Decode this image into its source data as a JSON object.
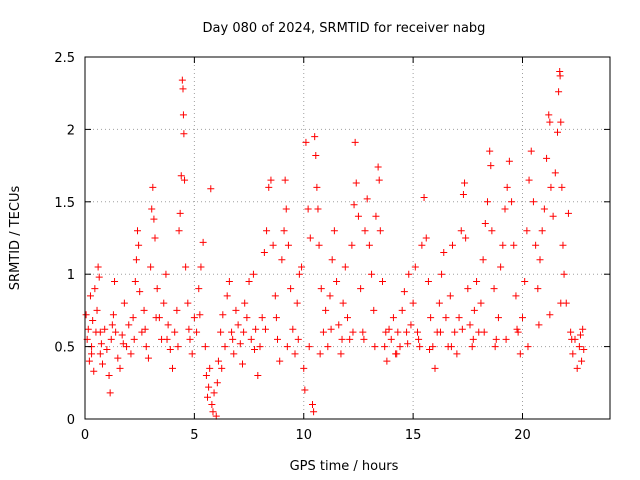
{
  "chart_data": {
    "type": "scatter",
    "title": "Day 080 of 2024, SRMTID for receiver nabg",
    "xlabel": "GPS time / hours",
    "ylabel": "SRMTID / TECUs",
    "xlim": [
      0,
      24
    ],
    "ylim": [
      0,
      2.5
    ],
    "xticks": [
      0,
      5,
      10,
      15,
      20
    ],
    "xtick_labels": [
      "0",
      "5",
      "10",
      "15",
      "20"
    ],
    "yticks": [
      0,
      0.5,
      1,
      1.5,
      2,
      2.5
    ],
    "ytick_labels": [
      "0",
      "0.5",
      "1",
      "1.5",
      "2",
      "2.5"
    ],
    "grid": true,
    "marker": "plus",
    "color": "#ff0000",
    "series": [
      {
        "points": [
          [
            0.05,
            0.72
          ],
          [
            0.1,
            0.55
          ],
          [
            0.15,
            0.62
          ],
          [
            0.2,
            0.4
          ],
          [
            0.25,
            0.85
          ],
          [
            0.3,
            0.5
          ],
          [
            0.35,
            0.68
          ],
          [
            0.4,
            0.33
          ],
          [
            0.45,
            0.9
          ],
          [
            0.5,
            0.6
          ],
          [
            0.55,
            0.75
          ],
          [
            0.6,
            1.05
          ],
          [
            0.65,
            0.98
          ],
          [
            0.7,
            0.45
          ],
          [
            0.75,
            0.52
          ],
          [
            0.8,
            0.38
          ],
          [
            0.9,
            0.62
          ],
          [
            1.0,
            0.48
          ],
          [
            1.1,
            0.3
          ],
          [
            1.15,
            0.18
          ],
          [
            1.2,
            0.55
          ],
          [
            1.3,
            0.72
          ],
          [
            1.35,
            0.95
          ],
          [
            1.4,
            0.6
          ],
          [
            1.5,
            0.42
          ],
          [
            1.6,
            0.35
          ],
          [
            1.7,
            0.58
          ],
          [
            1.8,
            0.8
          ],
          [
            1.9,
            0.5
          ],
          [
            2.0,
            0.65
          ],
          [
            2.1,
            0.45
          ],
          [
            2.2,
            0.7
          ],
          [
            2.3,
            0.95
          ],
          [
            2.35,
            1.1
          ],
          [
            2.4,
            1.3
          ],
          [
            2.45,
            1.2
          ],
          [
            2.5,
            0.88
          ],
          [
            2.6,
            0.6
          ],
          [
            2.7,
            0.75
          ],
          [
            2.8,
            0.5
          ],
          [
            2.9,
            0.42
          ],
          [
            3.0,
            1.05
          ],
          [
            3.05,
            1.45
          ],
          [
            3.1,
            1.6
          ],
          [
            3.15,
            1.38
          ],
          [
            3.2,
            1.25
          ],
          [
            3.3,
            0.9
          ],
          [
            3.4,
            0.7
          ],
          [
            3.5,
            0.55
          ],
          [
            3.6,
            0.8
          ],
          [
            3.7,
            1.0
          ],
          [
            3.8,
            0.65
          ],
          [
            3.9,
            0.48
          ],
          [
            4.0,
            0.35
          ],
          [
            4.1,
            0.6
          ],
          [
            4.2,
            0.75
          ],
          [
            4.3,
            1.3
          ],
          [
            4.35,
            1.42
          ],
          [
            4.4,
            1.68
          ],
          [
            4.45,
            2.34
          ],
          [
            4.48,
            2.28
          ],
          [
            4.5,
            2.1
          ],
          [
            4.52,
            1.97
          ],
          [
            4.55,
            1.65
          ],
          [
            4.6,
            1.05
          ],
          [
            4.7,
            0.8
          ],
          [
            4.8,
            0.55
          ],
          [
            4.9,
            0.45
          ],
          [
            5.0,
            0.7
          ],
          [
            5.1,
            0.6
          ],
          [
            5.2,
            0.9
          ],
          [
            5.3,
            1.05
          ],
          [
            5.4,
            1.22
          ],
          [
            5.5,
            0.5
          ],
          [
            5.55,
            0.3
          ],
          [
            5.6,
            0.15
          ],
          [
            5.65,
            0.22
          ],
          [
            5.7,
            0.35
          ],
          [
            5.75,
            1.59
          ],
          [
            5.8,
            0.1
          ],
          [
            5.85,
            0.05
          ],
          [
            5.9,
            0.18
          ],
          [
            6.0,
            0.02
          ],
          [
            6.05,
            0.25
          ],
          [
            6.1,
            0.4
          ],
          [
            6.2,
            0.6
          ],
          [
            6.3,
            0.72
          ],
          [
            6.4,
            0.5
          ],
          [
            6.5,
            0.85
          ],
          [
            6.6,
            0.95
          ],
          [
            6.7,
            0.6
          ],
          [
            6.8,
            0.45
          ],
          [
            6.9,
            0.75
          ],
          [
            7.0,
            0.65
          ],
          [
            7.1,
            0.52
          ],
          [
            7.2,
            0.38
          ],
          [
            7.3,
            0.8
          ],
          [
            7.4,
            0.7
          ],
          [
            7.5,
            0.95
          ],
          [
            7.6,
            0.55
          ],
          [
            7.7,
            1.0
          ],
          [
            7.8,
            0.62
          ],
          [
            7.9,
            0.3
          ],
          [
            8.0,
            0.5
          ],
          [
            8.1,
            0.7
          ],
          [
            8.2,
            1.15
          ],
          [
            8.3,
            1.3
          ],
          [
            8.4,
            1.6
          ],
          [
            8.5,
            1.65
          ],
          [
            8.6,
            1.2
          ],
          [
            8.7,
            0.85
          ],
          [
            8.8,
            0.55
          ],
          [
            8.9,
            0.4
          ],
          [
            9.0,
            1.1
          ],
          [
            9.1,
            1.3
          ],
          [
            9.15,
            1.65
          ],
          [
            9.2,
            1.45
          ],
          [
            9.3,
            1.2
          ],
          [
            9.4,
            0.9
          ],
          [
            9.5,
            0.62
          ],
          [
            9.6,
            0.45
          ],
          [
            9.7,
            0.8
          ],
          [
            9.8,
            1.0
          ],
          [
            9.9,
            1.05
          ],
          [
            10.0,
            0.35
          ],
          [
            10.05,
            0.2
          ],
          [
            10.1,
            1.91
          ],
          [
            10.2,
            1.45
          ],
          [
            10.3,
            1.25
          ],
          [
            10.4,
            0.1
          ],
          [
            10.45,
            0.05
          ],
          [
            10.5,
            1.95
          ],
          [
            10.55,
            1.82
          ],
          [
            10.6,
            1.6
          ],
          [
            10.65,
            1.45
          ],
          [
            10.7,
            1.2
          ],
          [
            10.8,
            0.9
          ],
          [
            10.9,
            0.6
          ],
          [
            11.0,
            0.75
          ],
          [
            11.1,
            0.5
          ],
          [
            11.2,
            0.85
          ],
          [
            11.3,
            1.1
          ],
          [
            11.4,
            1.3
          ],
          [
            11.5,
            0.95
          ],
          [
            11.6,
            0.65
          ],
          [
            11.7,
            0.45
          ],
          [
            11.8,
            0.8
          ],
          [
            11.9,
            1.05
          ],
          [
            12.0,
            0.7
          ],
          [
            12.1,
            0.55
          ],
          [
            12.2,
            1.2
          ],
          [
            12.3,
            1.48
          ],
          [
            12.35,
            1.91
          ],
          [
            12.4,
            1.63
          ],
          [
            12.5,
            1.4
          ],
          [
            12.6,
            0.9
          ],
          [
            12.7,
            0.6
          ],
          [
            12.8,
            1.3
          ],
          [
            12.9,
            1.52
          ],
          [
            13.0,
            1.2
          ],
          [
            13.1,
            1.0
          ],
          [
            13.2,
            0.75
          ],
          [
            13.3,
            1.4
          ],
          [
            13.4,
            1.74
          ],
          [
            13.45,
            1.65
          ],
          [
            13.5,
            1.3
          ],
          [
            13.6,
            0.95
          ],
          [
            13.7,
            0.5
          ],
          [
            13.8,
            0.4
          ],
          [
            13.9,
            0.62
          ],
          [
            14.0,
            0.55
          ],
          [
            14.1,
            0.7
          ],
          [
            14.2,
            0.45
          ],
          [
            14.3,
            0.6
          ],
          [
            14.4,
            0.5
          ],
          [
            14.5,
            0.75
          ],
          [
            14.6,
            0.88
          ],
          [
            14.7,
            0.6
          ],
          [
            14.8,
            1.0
          ],
          [
            14.9,
            0.65
          ],
          [
            15.0,
            0.8
          ],
          [
            15.1,
            1.05
          ],
          [
            15.2,
            0.6
          ],
          [
            15.3,
            0.5
          ],
          [
            15.4,
            1.2
          ],
          [
            15.5,
            1.53
          ],
          [
            15.6,
            1.25
          ],
          [
            15.7,
            0.95
          ],
          [
            15.8,
            0.7
          ],
          [
            15.9,
            0.5
          ],
          [
            16.0,
            0.35
          ],
          [
            16.1,
            0.6
          ],
          [
            16.2,
            0.8
          ],
          [
            16.3,
            1.0
          ],
          [
            16.4,
            1.15
          ],
          [
            16.5,
            0.7
          ],
          [
            16.6,
            0.5
          ],
          [
            16.7,
            0.85
          ],
          [
            16.8,
            1.2
          ],
          [
            16.9,
            0.6
          ],
          [
            17.0,
            0.45
          ],
          [
            17.1,
            0.7
          ],
          [
            17.2,
            1.3
          ],
          [
            17.3,
            1.55
          ],
          [
            17.35,
            1.63
          ],
          [
            17.4,
            1.25
          ],
          [
            17.5,
            0.9
          ],
          [
            17.6,
            0.65
          ],
          [
            17.7,
            0.5
          ],
          [
            17.8,
            0.75
          ],
          [
            17.9,
            0.95
          ],
          [
            18.0,
            0.6
          ],
          [
            18.1,
            0.8
          ],
          [
            18.2,
            1.1
          ],
          [
            18.3,
            1.35
          ],
          [
            18.4,
            1.5
          ],
          [
            18.5,
            1.85
          ],
          [
            18.55,
            1.75
          ],
          [
            18.6,
            1.3
          ],
          [
            18.7,
            0.9
          ],
          [
            18.8,
            0.55
          ],
          [
            18.9,
            0.7
          ],
          [
            19.0,
            1.05
          ],
          [
            19.1,
            1.2
          ],
          [
            19.2,
            1.45
          ],
          [
            19.3,
            1.6
          ],
          [
            19.4,
            1.78
          ],
          [
            19.5,
            1.5
          ],
          [
            19.6,
            1.2
          ],
          [
            19.7,
            0.85
          ],
          [
            19.8,
            0.6
          ],
          [
            19.9,
            0.45
          ],
          [
            20.0,
            0.7
          ],
          [
            20.1,
            0.95
          ],
          [
            20.2,
            1.3
          ],
          [
            20.3,
            1.65
          ],
          [
            20.4,
            1.85
          ],
          [
            20.5,
            1.5
          ],
          [
            20.6,
            1.2
          ],
          [
            20.7,
            0.9
          ],
          [
            20.8,
            1.1
          ],
          [
            20.9,
            1.3
          ],
          [
            21.0,
            1.45
          ],
          [
            21.1,
            1.8
          ],
          [
            21.2,
            2.1
          ],
          [
            21.25,
            2.05
          ],
          [
            21.3,
            1.6
          ],
          [
            21.4,
            1.4
          ],
          [
            21.5,
            1.7
          ],
          [
            21.6,
            1.98
          ],
          [
            21.65,
            2.26
          ],
          [
            21.7,
            2.4
          ],
          [
            21.72,
            2.37
          ],
          [
            21.75,
            2.05
          ],
          [
            21.8,
            1.6
          ],
          [
            21.85,
            1.2
          ],
          [
            21.9,
            1.0
          ],
          [
            22.0,
            0.8
          ],
          [
            22.1,
            1.42
          ],
          [
            22.2,
            0.6
          ],
          [
            22.3,
            0.45
          ],
          [
            22.4,
            0.55
          ],
          [
            22.5,
            0.35
          ],
          [
            22.6,
            0.5
          ],
          [
            22.7,
            0.4
          ],
          [
            22.75,
            0.62
          ],
          [
            22.8,
            0.48
          ],
          [
            0.3,
            0.45
          ],
          [
            0.7,
            0.6
          ],
          [
            1.25,
            0.65
          ],
          [
            1.75,
            0.52
          ],
          [
            2.25,
            0.55
          ],
          [
            2.75,
            0.62
          ],
          [
            3.25,
            0.7
          ],
          [
            3.75,
            0.55
          ],
          [
            4.25,
            0.5
          ],
          [
            4.75,
            0.62
          ],
          [
            5.25,
            0.72
          ],
          [
            6.25,
            0.35
          ],
          [
            6.75,
            0.55
          ],
          [
            7.25,
            0.6
          ],
          [
            7.75,
            0.48
          ],
          [
            8.25,
            0.62
          ],
          [
            8.75,
            0.7
          ],
          [
            9.25,
            0.5
          ],
          [
            9.75,
            0.55
          ],
          [
            10.25,
            0.5
          ],
          [
            10.75,
            0.45
          ],
          [
            11.25,
            0.62
          ],
          [
            11.75,
            0.55
          ],
          [
            12.25,
            0.6
          ],
          [
            12.75,
            0.55
          ],
          [
            13.25,
            0.5
          ],
          [
            13.75,
            0.6
          ],
          [
            14.25,
            0.45
          ],
          [
            14.75,
            0.52
          ],
          [
            15.25,
            0.55
          ],
          [
            15.75,
            0.48
          ],
          [
            16.25,
            0.6
          ],
          [
            16.75,
            0.5
          ],
          [
            17.25,
            0.62
          ],
          [
            17.75,
            0.55
          ],
          [
            18.25,
            0.6
          ],
          [
            18.75,
            0.5
          ],
          [
            19.25,
            0.55
          ],
          [
            19.75,
            0.62
          ],
          [
            20.25,
            0.5
          ],
          [
            20.75,
            0.65
          ],
          [
            21.25,
            0.72
          ],
          [
            21.75,
            0.8
          ],
          [
            22.25,
            0.55
          ],
          [
            22.65,
            0.58
          ]
        ]
      }
    ]
  }
}
